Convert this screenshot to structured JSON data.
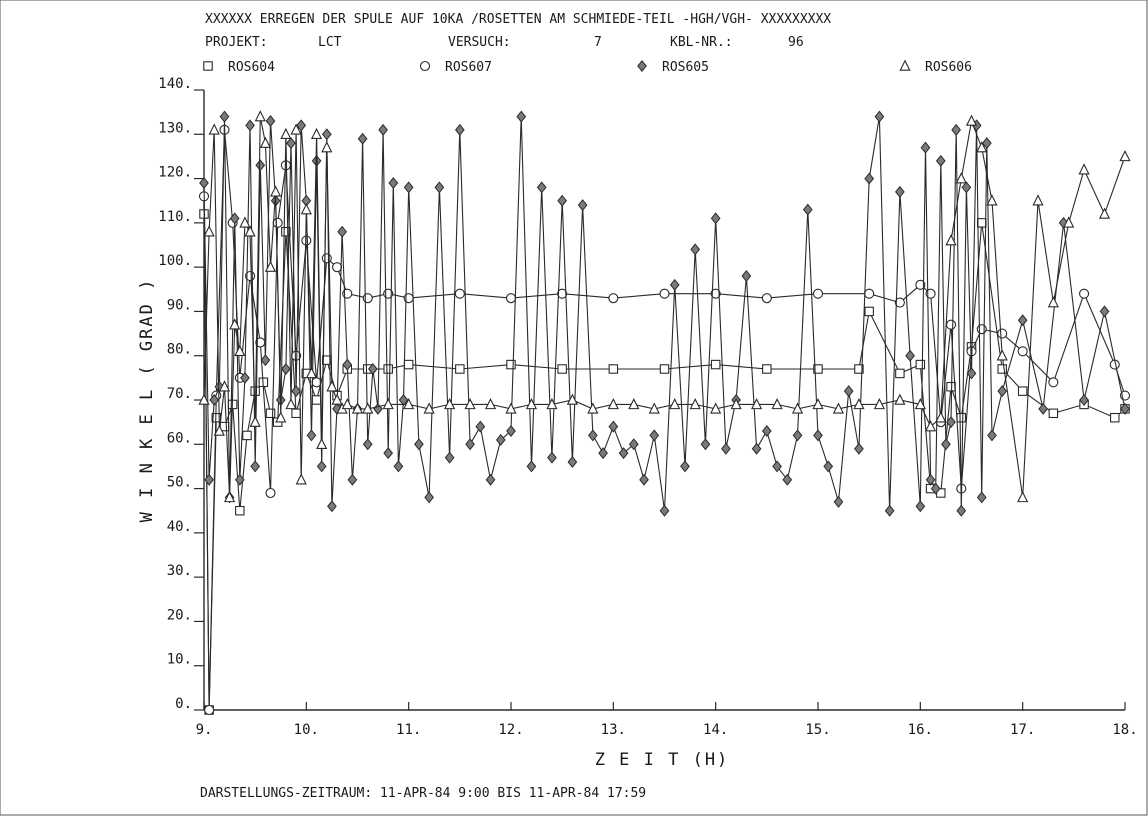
{
  "header": {
    "title": "XXXXXX ERREGEN DER SPULE AUF 10KA /ROSETTEN AM SCHMIEDE-TEIL -HGH/VGH- XXXXXXXXX",
    "projekt_label": "PROJEKT:",
    "projekt_value": "LCT",
    "versuch_label": "VERSUCH:",
    "versuch_value": "7",
    "kbl_label": "KBL-NR.:",
    "kbl_value": "96"
  },
  "footer": {
    "text": "DARSTELLUNGS-ZEITRAUM:  11-APR-84   9:00  BIS  11-APR-84  17:59"
  },
  "chart_data": {
    "type": "line",
    "xlabel": "Z E I T   (H)",
    "ylabel": "W I N K E L   ( GRAD )",
    "xlim": [
      9,
      18
    ],
    "ylim": [
      0,
      140
    ],
    "xticks": [
      "9.",
      "10.",
      "11.",
      "12.",
      "13.",
      "14.",
      "15.",
      "16.",
      "17.",
      "18."
    ],
    "yticks": [
      "0.",
      "10.",
      "20.",
      "30.",
      "40.",
      "50.",
      "60.",
      "70.",
      "80.",
      "90.",
      "100.",
      "110.",
      "120.",
      "130.",
      "140."
    ],
    "grid": false,
    "legend_position": "top",
    "series": [
      {
        "name": "ROS604",
        "marker": "square",
        "x": [
          9.0,
          9.05,
          9.12,
          9.2,
          9.28,
          9.35,
          9.42,
          9.5,
          9.58,
          9.65,
          9.72,
          9.8,
          9.9,
          10.0,
          10.1,
          10.2,
          10.3,
          10.4,
          10.6,
          10.8,
          11.0,
          11.5,
          12.0,
          12.5,
          13.0,
          13.5,
          14.0,
          14.5,
          15.0,
          15.4,
          15.5,
          15.8,
          16.0,
          16.1,
          16.2,
          16.3,
          16.4,
          16.5,
          16.6,
          16.8,
          17.0,
          17.3,
          17.6,
          17.9,
          18.0
        ],
        "y": [
          112,
          0,
          66,
          64,
          69,
          45,
          62,
          72,
          74,
          67,
          65,
          108,
          67,
          76,
          70,
          79,
          71,
          77,
          77,
          77,
          78,
          77,
          78,
          77,
          77,
          77,
          78,
          77,
          77,
          77,
          90,
          76,
          78,
          50,
          49,
          73,
          66,
          82,
          110,
          77,
          72,
          67,
          69,
          66,
          68
        ]
      },
      {
        "name": "ROS607",
        "marker": "circle",
        "x": [
          9.0,
          9.05,
          9.12,
          9.2,
          9.28,
          9.35,
          9.45,
          9.55,
          9.65,
          9.72,
          9.8,
          9.9,
          10.0,
          10.1,
          10.2,
          10.3,
          10.4,
          10.6,
          10.8,
          11.0,
          11.5,
          12.0,
          12.5,
          13.0,
          13.5,
          14.0,
          14.5,
          15.0,
          15.5,
          15.8,
          16.0,
          16.1,
          16.2,
          16.3,
          16.4,
          16.5,
          16.6,
          16.8,
          17.0,
          17.3,
          17.6,
          17.9,
          18.0
        ],
        "y": [
          116,
          0,
          71,
          131,
          110,
          75,
          98,
          83,
          49,
          110,
          123,
          80,
          106,
          74,
          102,
          100,
          94,
          93,
          94,
          93,
          94,
          93,
          94,
          93,
          94,
          94,
          93,
          94,
          94,
          92,
          96,
          94,
          65,
          87,
          50,
          81,
          86,
          85,
          81,
          74,
          94,
          78,
          71
        ]
      },
      {
        "name": "ROS605",
        "marker": "diamond",
        "x": [
          9.0,
          9.05,
          9.1,
          9.15,
          9.2,
          9.25,
          9.3,
          9.35,
          9.4,
          9.45,
          9.5,
          9.55,
          9.6,
          9.65,
          9.7,
          9.75,
          9.8,
          9.85,
          9.9,
          9.95,
          10.0,
          10.05,
          10.1,
          10.15,
          10.2,
          10.25,
          10.3,
          10.35,
          10.4,
          10.45,
          10.5,
          10.55,
          10.6,
          10.65,
          10.7,
          10.75,
          10.8,
          10.85,
          10.9,
          10.95,
          11.0,
          11.1,
          11.2,
          11.3,
          11.4,
          11.5,
          11.6,
          11.7,
          11.8,
          11.9,
          12.0,
          12.1,
          12.2,
          12.3,
          12.4,
          12.5,
          12.6,
          12.7,
          12.8,
          12.9,
          13.0,
          13.1,
          13.2,
          13.3,
          13.4,
          13.5,
          13.6,
          13.7,
          13.8,
          13.9,
          14.0,
          14.1,
          14.2,
          14.3,
          14.4,
          14.5,
          14.6,
          14.7,
          14.8,
          14.9,
          15.0,
          15.1,
          15.2,
          15.3,
          15.4,
          15.5,
          15.6,
          15.7,
          15.8,
          15.9,
          16.0,
          16.05,
          16.1,
          16.15,
          16.2,
          16.25,
          16.3,
          16.35,
          16.4,
          16.45,
          16.5,
          16.55,
          16.6,
          16.65,
          16.7,
          16.8,
          17.0,
          17.2,
          17.4,
          17.6,
          17.8,
          18.0
        ],
        "y": [
          119,
          52,
          70,
          73,
          134,
          48,
          111,
          52,
          75,
          132,
          55,
          123,
          79,
          133,
          115,
          70,
          77,
          128,
          72,
          132,
          115,
          62,
          124,
          55,
          130,
          46,
          68,
          108,
          78,
          52,
          68,
          129,
          60,
          77,
          68,
          131,
          58,
          119,
          55,
          70,
          118,
          60,
          48,
          118,
          57,
          131,
          60,
          64,
          52,
          61,
          63,
          134,
          55,
          118,
          57,
          115,
          56,
          114,
          62,
          58,
          64,
          58,
          60,
          52,
          62,
          45,
          96,
          55,
          104,
          60,
          111,
          59,
          70,
          98,
          59,
          63,
          55,
          52,
          62,
          113,
          62,
          55,
          47,
          72,
          59,
          120,
          134,
          45,
          117,
          80,
          46,
          127,
          52,
          50,
          124,
          60,
          65,
          131,
          45,
          118,
          76,
          132,
          48,
          128,
          62,
          72,
          88,
          68,
          110,
          70,
          90,
          68
        ]
      },
      {
        "name": "ROS606",
        "marker": "triangle",
        "x": [
          9.0,
          9.05,
          9.1,
          9.15,
          9.2,
          9.25,
          9.3,
          9.35,
          9.4,
          9.45,
          9.5,
          9.55,
          9.6,
          9.65,
          9.7,
          9.75,
          9.8,
          9.85,
          9.9,
          9.95,
          10.0,
          10.05,
          10.1,
          10.15,
          10.2,
          10.25,
          10.3,
          10.35,
          10.4,
          10.5,
          10.6,
          10.8,
          11.0,
          11.2,
          11.4,
          11.6,
          11.8,
          12.0,
          12.2,
          12.4,
          12.6,
          12.8,
          13.0,
          13.2,
          13.4,
          13.6,
          13.8,
          14.0,
          14.2,
          14.4,
          14.6,
          14.8,
          15.0,
          15.2,
          15.4,
          15.6,
          15.8,
          16.0,
          16.1,
          16.2,
          16.3,
          16.4,
          16.5,
          16.6,
          16.7,
          16.8,
          17.0,
          17.15,
          17.3,
          17.45,
          17.6,
          17.8,
          18.0
        ],
        "y": [
          70,
          108,
          131,
          63,
          73,
          48,
          87,
          81,
          110,
          108,
          65,
          134,
          128,
          100,
          117,
          66,
          130,
          69,
          131,
          52,
          113,
          76,
          130,
          60,
          127,
          73,
          70,
          68,
          69,
          68,
          68,
          69,
          69,
          68,
          69,
          69,
          69,
          68,
          69,
          69,
          70,
          68,
          69,
          69,
          68,
          69,
          69,
          68,
          69,
          69,
          69,
          68,
          69,
          68,
          69,
          69,
          70,
          69,
          64,
          66,
          106,
          120,
          133,
          127,
          115,
          80,
          48,
          115,
          92,
          110,
          122,
          112,
          125
        ]
      }
    ]
  }
}
